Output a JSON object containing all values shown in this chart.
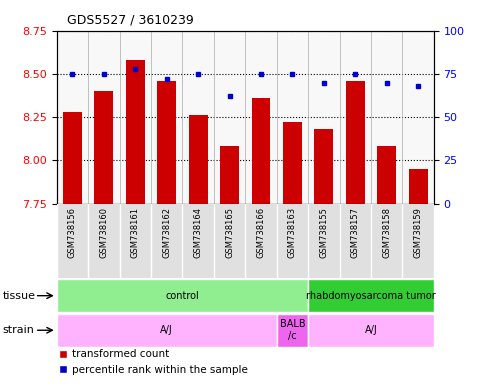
{
  "title": "GDS5527 / 3610239",
  "samples": [
    "GSM738156",
    "GSM738160",
    "GSM738161",
    "GSM738162",
    "GSM738164",
    "GSM738165",
    "GSM738166",
    "GSM738163",
    "GSM738155",
    "GSM738157",
    "GSM738158",
    "GSM738159"
  ],
  "transformed_count": [
    8.28,
    8.4,
    8.58,
    8.46,
    8.26,
    8.08,
    8.36,
    8.22,
    8.18,
    8.46,
    8.08,
    7.95
  ],
  "percentile_rank": [
    75,
    75,
    78,
    72,
    75,
    62,
    75,
    75,
    70,
    75,
    70,
    68
  ],
  "ylim_left": [
    7.75,
    8.75
  ],
  "ylim_right": [
    0,
    100
  ],
  "yticks_left": [
    7.75,
    8.0,
    8.25,
    8.5,
    8.75
  ],
  "yticks_right": [
    0,
    25,
    50,
    75,
    100
  ],
  "bar_color": "#cc0000",
  "dot_color": "#0000cc",
  "bar_bottom": 7.75,
  "tissue_groups": [
    {
      "label": "control",
      "start": 0,
      "end": 8,
      "color": "#90ee90"
    },
    {
      "label": "rhabdomyosarcoma tumor",
      "start": 8,
      "end": 12,
      "color": "#32cd32"
    }
  ],
  "strain_groups": [
    {
      "label": "A/J",
      "start": 0,
      "end": 7,
      "color": "#ffb3ff"
    },
    {
      "label": "BALB\n/c",
      "start": 7,
      "end": 8,
      "color": "#ee66ee"
    },
    {
      "label": "A/J",
      "start": 8,
      "end": 12,
      "color": "#ffb3ff"
    }
  ],
  "legend_red_label": "transformed count",
  "legend_blue_label": "percentile rank within the sample"
}
